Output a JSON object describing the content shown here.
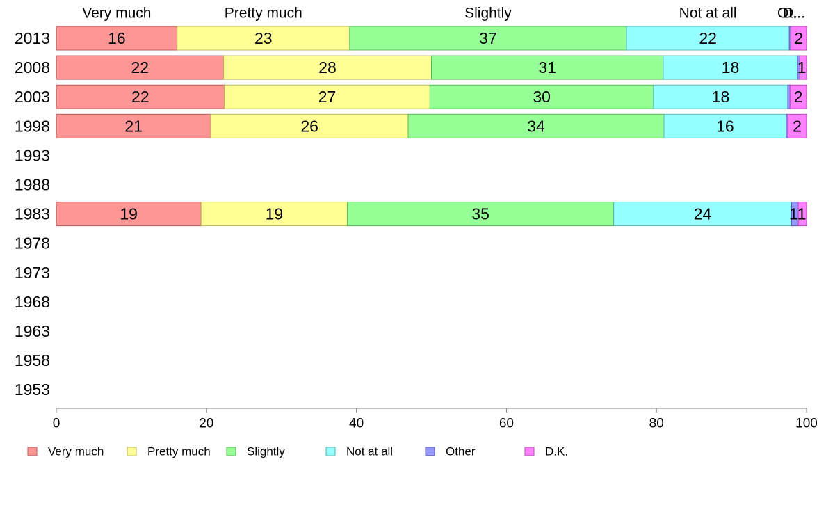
{
  "chart_data": {
    "type": "bar",
    "orientation": "horizontal",
    "stacked": true,
    "title": "",
    "xlabel": "",
    "ylabel": "",
    "xlim": [
      0,
      100
    ],
    "x_ticks": [
      "0",
      "20",
      "40",
      "60",
      "80",
      "100"
    ],
    "categories": [
      "2013",
      "2008",
      "2003",
      "1998",
      "1993",
      "1988",
      "1983",
      "1978",
      "1973",
      "1968",
      "1963",
      "1958",
      "1953"
    ],
    "top_labels": [
      "Very much",
      "Pretty much",
      "Slightly",
      "Not at all",
      "Ot...",
      "D..."
    ],
    "series": [
      {
        "name": "Very much",
        "color": "#ff9696",
        "edge": "#b85a5a",
        "values": [
          16.1,
          22.3,
          22.4,
          20.6,
          null,
          null,
          19.3,
          null,
          null,
          null,
          null,
          null,
          null
        ],
        "labels": [
          "16",
          "22",
          "22",
          "21",
          "",
          "",
          "19",
          "",
          "",
          "",
          "",
          "",
          ""
        ]
      },
      {
        "name": "Pretty much",
        "color": "#ffff96",
        "edge": "#b8b85a",
        "values": [
          23.0,
          27.7,
          27.4,
          26.3,
          null,
          null,
          19.5,
          null,
          null,
          null,
          null,
          null,
          null
        ],
        "labels": [
          "23",
          "28",
          "27",
          "26",
          "",
          "",
          "19",
          "",
          "",
          "",
          "",
          "",
          ""
        ]
      },
      {
        "name": "Slightly",
        "color": "#96ff96",
        "edge": "#5ab85a",
        "values": [
          36.9,
          30.9,
          29.8,
          34.1,
          null,
          null,
          35.5,
          null,
          null,
          null,
          null,
          null,
          null
        ],
        "labels": [
          "37",
          "31",
          "30",
          "34",
          "",
          "",
          "35",
          "",
          "",
          "",
          "",
          "",
          ""
        ]
      },
      {
        "name": "Not at all",
        "color": "#96ffff",
        "edge": "#5ab8b8",
        "values": [
          21.7,
          17.9,
          17.9,
          16.3,
          null,
          null,
          23.7,
          null,
          null,
          null,
          null,
          null,
          null
        ],
        "labels": [
          "22",
          "18",
          "18",
          "16",
          "",
          "",
          "24",
          "",
          "",
          "",
          "",
          "",
          ""
        ]
      },
      {
        "name": "Other",
        "color": "#9696ff",
        "edge": "#5a5ab8",
        "values": [
          0.2,
          0.3,
          0.3,
          0.2,
          null,
          null,
          0.9,
          null,
          null,
          null,
          null,
          null,
          null
        ],
        "labels": [
          "",
          "",
          "",
          "",
          "",
          "",
          "1",
          "",
          "",
          "",
          "",
          "",
          ""
        ]
      },
      {
        "name": "D.K.",
        "color": "#ff80ff",
        "edge": "#b84ab8",
        "values": [
          2.1,
          0.9,
          2.2,
          2.5,
          null,
          null,
          1.1,
          null,
          null,
          null,
          null,
          null,
          null
        ],
        "labels": [
          "2",
          "1",
          "2",
          "2",
          "",
          "",
          "1",
          "",
          "",
          "",
          "",
          "",
          ""
        ]
      }
    ],
    "legend": {
      "placement": "bottom",
      "entries": [
        "Very much",
        "Pretty much",
        "Slightly",
        "Not at all",
        "Other",
        "D.K."
      ]
    },
    "grid": false
  }
}
